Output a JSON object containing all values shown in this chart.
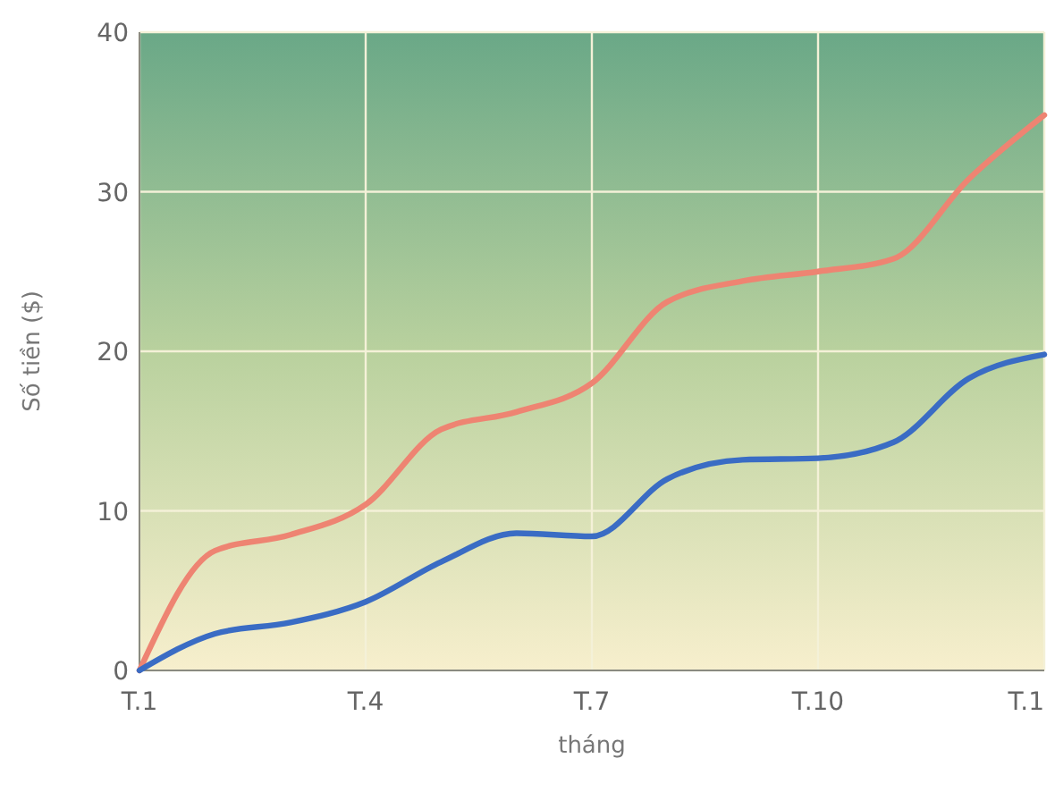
{
  "chart_data": {
    "type": "line",
    "xlabel": "tháng",
    "ylabel": "Số tiền ($)",
    "categories": [
      "T.1",
      null,
      null,
      "T.4",
      null,
      null,
      "T.7",
      null,
      null,
      "T.10",
      null,
      null,
      "T.1"
    ],
    "ylim": [
      0,
      40
    ],
    "yticks": [
      0,
      10,
      20,
      30,
      40
    ],
    "grid": true,
    "marker": "none",
    "line_style": "solid",
    "series": [
      {
        "color": "#ee8472",
        "values": [
          0,
          7.5,
          8.5,
          10.4,
          15.1,
          16.2,
          18.0,
          23.1,
          24.4,
          25.0,
          25.8,
          30.8,
          34.8
        ]
      },
      {
        "color": "#3a6cc4",
        "values": [
          0,
          2.3,
          3.0,
          4.3,
          6.8,
          8.6,
          8.4,
          12.0,
          13.2,
          13.3,
          14.3,
          18.3,
          19.8
        ]
      }
    ]
  }
}
